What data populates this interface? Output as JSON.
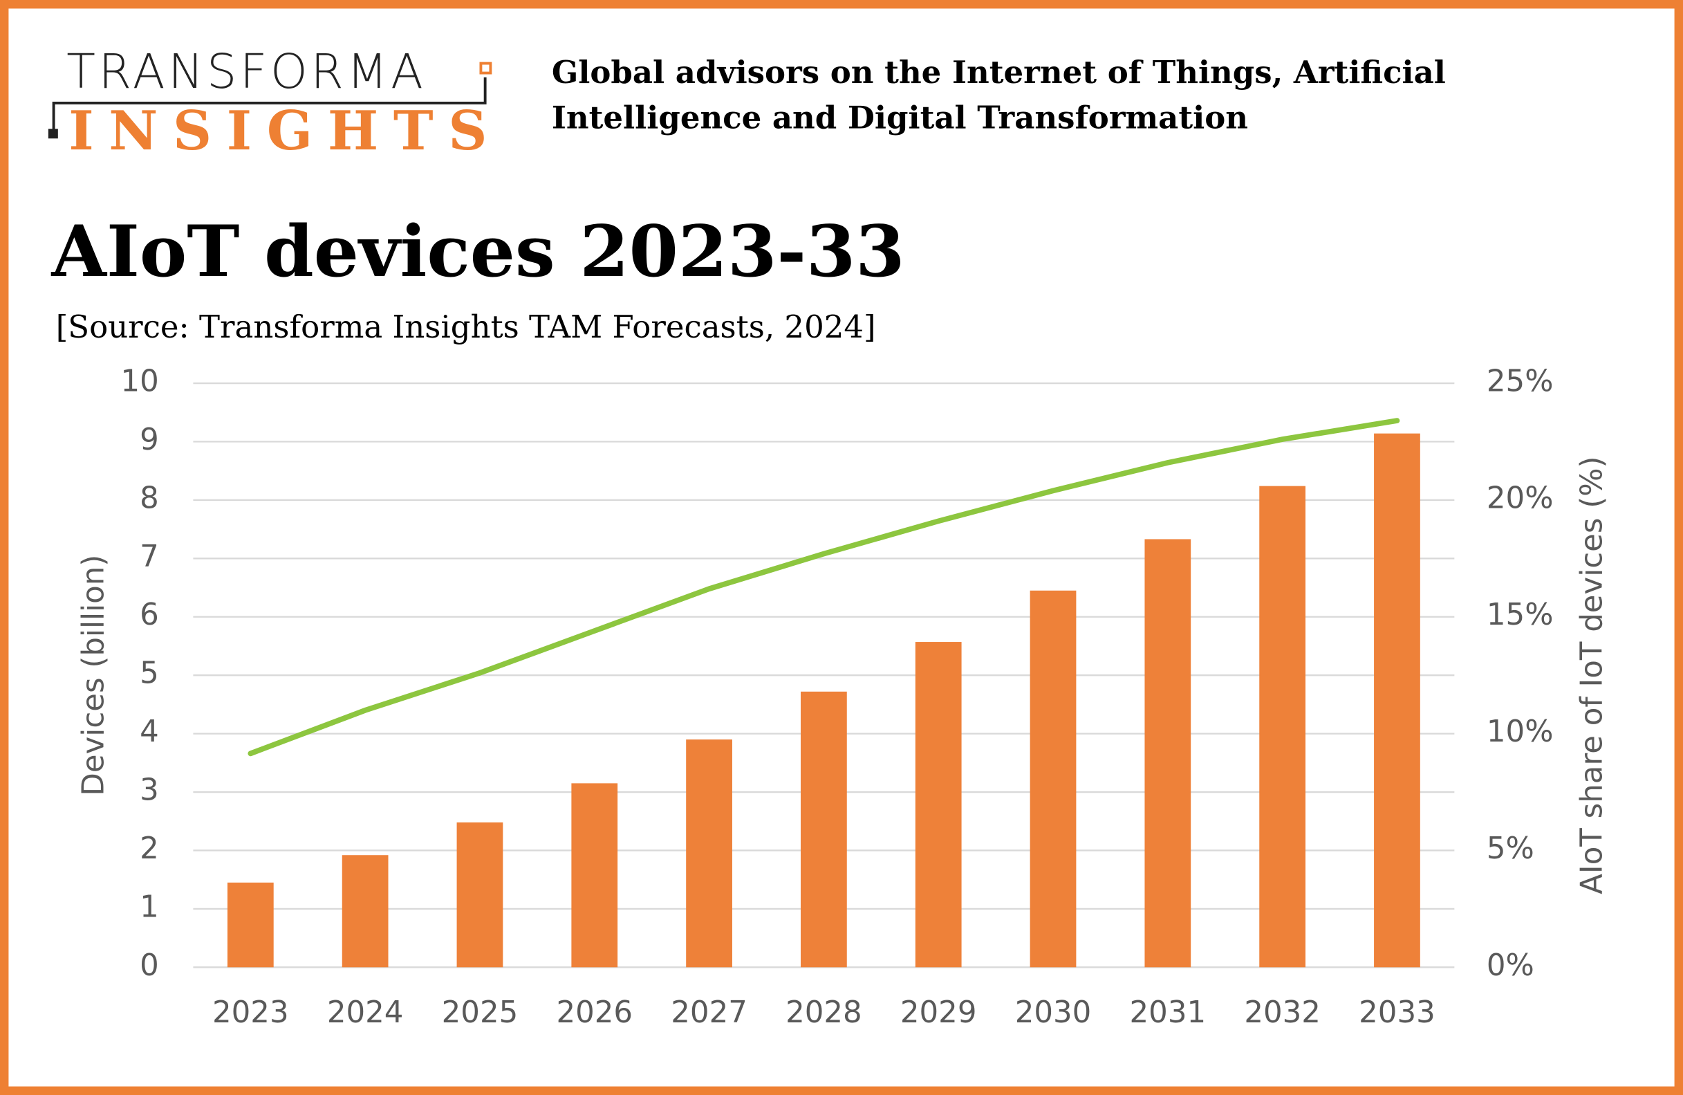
{
  "header": {
    "logo_top": "TRANSFORMA",
    "logo_bottom": "INSIGHTS",
    "tagline": [
      "Global advisors on the Internet of Things, Artificial",
      "Intelligence and Digital Transformation"
    ]
  },
  "chart_data": {
    "type": "bar",
    "title": "AIoT devices 2023-33",
    "subtitle": "[Source: Transforma Insights TAM Forecasts, 2024]",
    "y_label": "Devices (billion)",
    "y2_label": "AIoT share of IoT devices (%)",
    "categories": [
      "2023",
      "2024",
      "2025",
      "2026",
      "2027",
      "2028",
      "2029",
      "2030",
      "2031",
      "2032",
      "2033"
    ],
    "series": [
      {
        "type": "bar",
        "color": "#ee8139",
        "values": [
          1.45,
          1.92,
          2.48,
          3.15,
          3.9,
          4.72,
          5.57,
          6.45,
          7.33,
          8.24,
          9.14
        ]
      },
      {
        "type": "line",
        "axis": "y2",
        "color": "#8dc63f",
        "values": [
          9.15,
          11.0,
          12.6,
          14.4,
          16.2,
          17.7,
          19.1,
          20.4,
          21.6,
          22.6,
          23.4
        ]
      }
    ],
    "ylim": [
      0,
      10
    ],
    "yticks": [
      0,
      1,
      2,
      3,
      4,
      5,
      6,
      7,
      8,
      9,
      10
    ],
    "y2lim": [
      0,
      25
    ],
    "y2ticks": [
      {
        "value": 0,
        "label": "0%"
      },
      {
        "value": 5,
        "label": "5%"
      },
      {
        "value": 10,
        "label": "10%"
      },
      {
        "value": 15,
        "label": "15%"
      },
      {
        "value": 20,
        "label": "20%"
      },
      {
        "value": 25,
        "label": "25%"
      }
    ],
    "grid": true
  }
}
